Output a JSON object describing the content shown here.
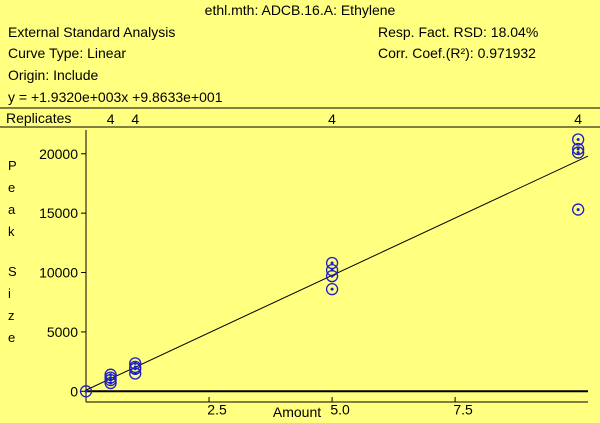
{
  "header": {
    "title": "ethl.mth:  ADCB.16.A:  Ethylene",
    "analysis": "External Standard Analysis",
    "curve_type": "Curve Type:  Linear",
    "origin": "Origin:  Include",
    "equation": "y =  +1.9320e+003x +9.8633e+001",
    "rsd": "Resp. Fact. RSD:  18.04%",
    "corr": "Corr. Coef.(R²):  0.971932"
  },
  "replicates": {
    "label": "Replicates",
    "counts": [
      {
        "x": 0.5,
        "count": "4"
      },
      {
        "x": 1.0,
        "count": "4"
      },
      {
        "x": 5.0,
        "count": "4"
      },
      {
        "x": 10.0,
        "count": "4"
      }
    ]
  },
  "colors": {
    "background": "#ffff80",
    "points": "#1e1ec8",
    "line": "#000000"
  },
  "chart_data": {
    "type": "scatter",
    "xlabel": "Amount",
    "ylabel": "Peak Size",
    "xlim": [
      0,
      10.2
    ],
    "ylim": [
      -900,
      22000
    ],
    "x_ticks": [
      2.5,
      5.0,
      7.5
    ],
    "x_tick_labels": [
      "2.5",
      "5.0",
      "7.5"
    ],
    "y_ticks": [
      0,
      5000,
      10000,
      15000,
      20000
    ],
    "y_tick_labels": [
      "0",
      "5000",
      "10000",
      "15000",
      "20000"
    ],
    "points": [
      {
        "x": 0,
        "y": 0
      },
      {
        "x": 0.5,
        "y": 950
      },
      {
        "x": 0.5,
        "y": 1150
      },
      {
        "x": 0.5,
        "y": 700
      },
      {
        "x": 0.5,
        "y": 1400
      },
      {
        "x": 1.0,
        "y": 1900
      },
      {
        "x": 1.0,
        "y": 2350
      },
      {
        "x": 1.0,
        "y": 1500
      },
      {
        "x": 1.0,
        "y": 2050
      },
      {
        "x": 5.0,
        "y": 10800
      },
      {
        "x": 5.0,
        "y": 10200
      },
      {
        "x": 5.0,
        "y": 9700
      },
      {
        "x": 5.0,
        "y": 8600
      },
      {
        "x": 10.0,
        "y": 21200
      },
      {
        "x": 10.0,
        "y": 20100
      },
      {
        "x": 10.0,
        "y": 20400
      },
      {
        "x": 10.0,
        "y": 15300
      }
    ],
    "fit": {
      "slope": 1932.0,
      "intercept": 98.633
    }
  }
}
